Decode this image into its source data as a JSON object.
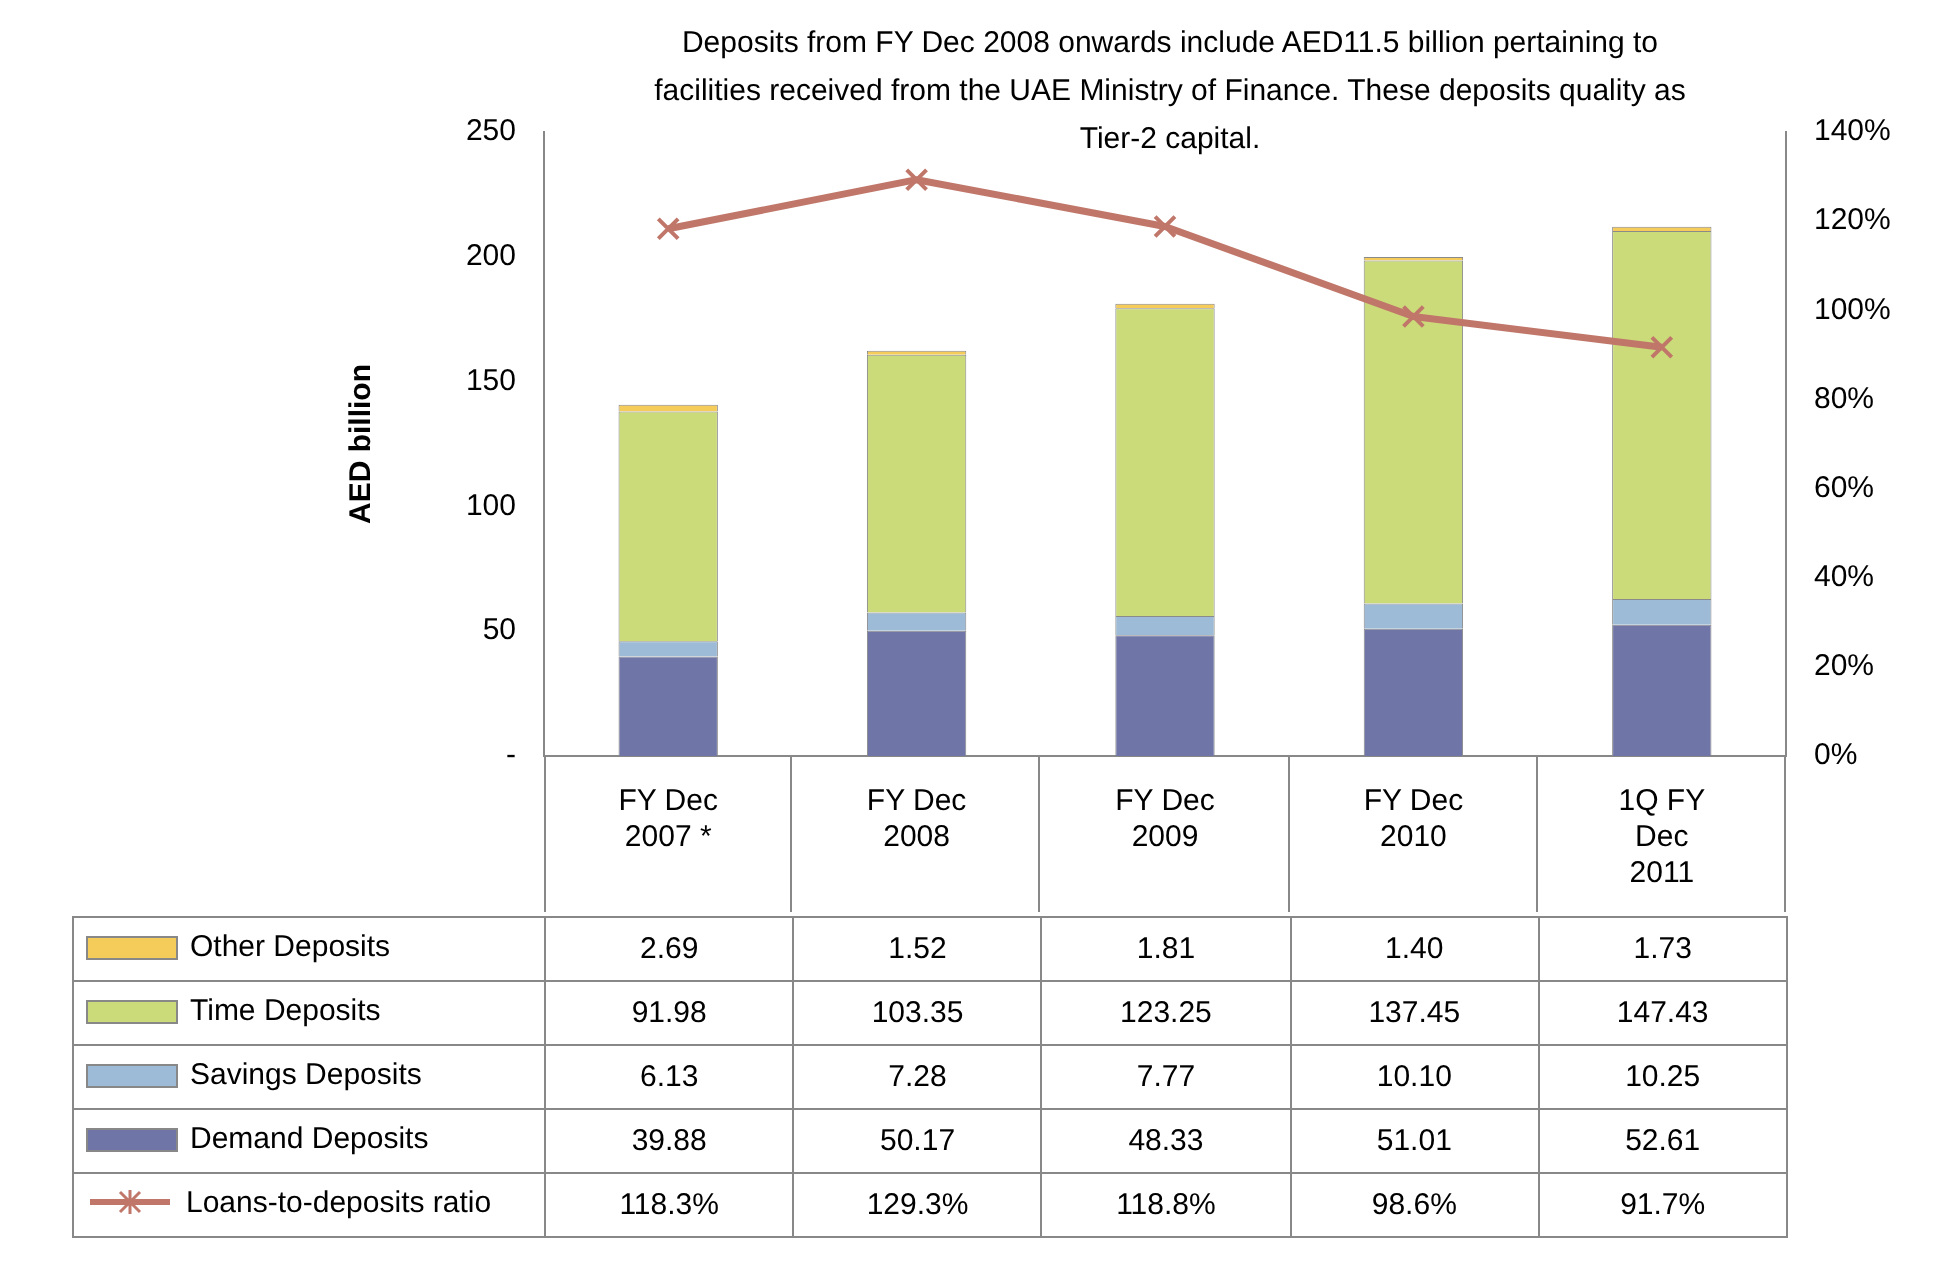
{
  "chart_data": {
    "type": "bar",
    "stacked": true,
    "categories": [
      "FY Dec 2007 *",
      "FY Dec 2008",
      "FY Dec 2009",
      "FY Dec 2010",
      "1Q FY Dec 2011"
    ],
    "ylabel": "AED billion",
    "ylim": [
      0,
      250
    ],
    "yticks": [
      {
        "value": 0,
        "label": "-"
      },
      50,
      100,
      150,
      200,
      250
    ],
    "y2lim": [
      0,
      140
    ],
    "y2ticks": [
      {
        "value": 0,
        "label": "0%"
      },
      {
        "value": 20,
        "label": "20%"
      },
      {
        "value": 40,
        "label": "40%"
      },
      {
        "value": 60,
        "label": "60%"
      },
      {
        "value": 80,
        "label": "80%"
      },
      {
        "value": 100,
        "label": "100%"
      },
      {
        "value": 120,
        "label": "120%"
      },
      {
        "value": 140,
        "label": "140%"
      }
    ],
    "annotations": [
      "Deposits from FY Dec 2008 onwards include AED11.5 billion pertaining to facilities received from the UAE Ministry of Finance. These deposits quality as Tier-2 capital."
    ],
    "legend": "bottom",
    "grid": false,
    "marker": "cross",
    "series": [
      {
        "name": "Demand Deposits",
        "color": "#6f75a6",
        "values": [
          39.88,
          50.17,
          48.33,
          51.01,
          52.61
        ],
        "value_labels": [
          "39.88",
          "50.17",
          "48.33",
          "51.01",
          "52.61"
        ]
      },
      {
        "name": "Savings Deposits",
        "color": "#9dbad6",
        "values": [
          6.13,
          7.28,
          7.77,
          10.1,
          10.25
        ],
        "value_labels": [
          "6.13",
          "7.28",
          "7.77",
          "10.10",
          "10.25"
        ]
      },
      {
        "name": "Time Deposits",
        "color": "#ccdb7a",
        "values": [
          91.98,
          103.35,
          123.25,
          137.45,
          147.43
        ],
        "value_labels": [
          "91.98",
          "103.35",
          "123.25",
          "137.45",
          "147.43"
        ]
      },
      {
        "name": "Other Deposits",
        "color": "#f5cc5a",
        "values": [
          2.69,
          1.52,
          1.81,
          1.4,
          1.73
        ],
        "value_labels": [
          "2.69",
          "1.52",
          "1.81",
          "1.40",
          "1.73"
        ]
      },
      {
        "name": "Loans-to-deposits ratio",
        "type": "line",
        "axis": "y2",
        "color": "#c0776a",
        "values": [
          118.3,
          129.3,
          118.8,
          98.6,
          91.7
        ],
        "value_labels": [
          "118.3%",
          "129.3%",
          "118.8%",
          "98.6%",
          "91.7%"
        ]
      }
    ]
  }
}
